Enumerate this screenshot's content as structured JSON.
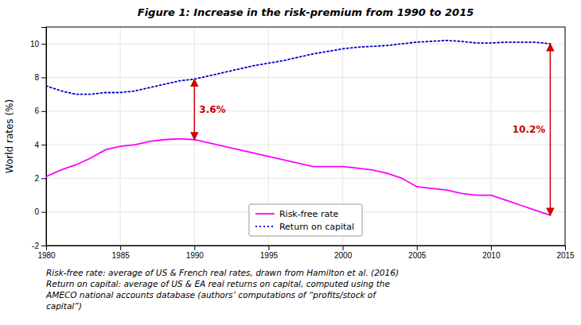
{
  "chart_data": {
    "type": "line",
    "title": "Figure 1: Increase in the risk-premium from 1990 to 2015",
    "y_label": "World rates (%)",
    "x": [
      1980,
      1981,
      1982,
      1983,
      1984,
      1985,
      1986,
      1987,
      1988,
      1989,
      1990,
      1991,
      1992,
      1993,
      1994,
      1995,
      1996,
      1997,
      1998,
      1999,
      2000,
      2001,
      2002,
      2003,
      2004,
      2005,
      2006,
      2007,
      2008,
      2009,
      2010,
      2011,
      2012,
      2013,
      2014
    ],
    "series": [
      {
        "name": "Risk-free rate",
        "color": "#FF00FF",
        "line_style": "solid",
        "values": [
          2.1,
          2.5,
          2.8,
          3.2,
          3.7,
          3.9,
          4.0,
          4.2,
          4.3,
          4.35,
          4.3,
          4.1,
          3.9,
          3.7,
          3.5,
          3.3,
          3.1,
          2.9,
          2.7,
          2.7,
          2.7,
          2.6,
          2.5,
          2.3,
          2.0,
          1.5,
          1.4,
          1.3,
          1.1,
          1.0,
          1.0,
          0.7,
          0.4,
          0.1,
          -0.2
        ]
      },
      {
        "name": "Return on capital",
        "color": "#0000CD",
        "line_style": "dotted",
        "values": [
          7.5,
          7.2,
          7.0,
          7.0,
          7.1,
          7.1,
          7.2,
          7.4,
          7.6,
          7.8,
          7.9,
          8.1,
          8.3,
          8.5,
          8.7,
          8.85,
          9.0,
          9.2,
          9.4,
          9.55,
          9.7,
          9.8,
          9.85,
          9.9,
          10.0,
          10.1,
          10.15,
          10.2,
          10.15,
          10.05,
          10.05,
          10.1,
          10.1,
          10.1,
          10.0
        ]
      }
    ],
    "xlim": [
      1980,
      2015
    ],
    "ylim": [
      -2,
      11
    ],
    "xticks": [
      1980,
      1985,
      1990,
      1995,
      2000,
      2005,
      2010,
      2015
    ],
    "yticks": [
      -2,
      0,
      2,
      4,
      6,
      8,
      10
    ],
    "grid": true,
    "legend": "bottom",
    "annotations": [
      {
        "text": "3.6%",
        "x": 1990,
        "y_from": 4.3,
        "y_to": 7.9,
        "color": "#CC0000"
      },
      {
        "text": "10.2%",
        "x": 2014,
        "y_from": -0.2,
        "y_to": 10.0,
        "color": "#CC0000"
      }
    ],
    "caption": [
      "Risk-free rate: average of US & French real rates, drawn from Hamilton et al. (2016)",
      "Return on capital: average of US & EA real returns on capital, computed using the",
      "AMECO national accounts database (authors’ computations of “profits/stock of",
      "capital”)"
    ]
  }
}
